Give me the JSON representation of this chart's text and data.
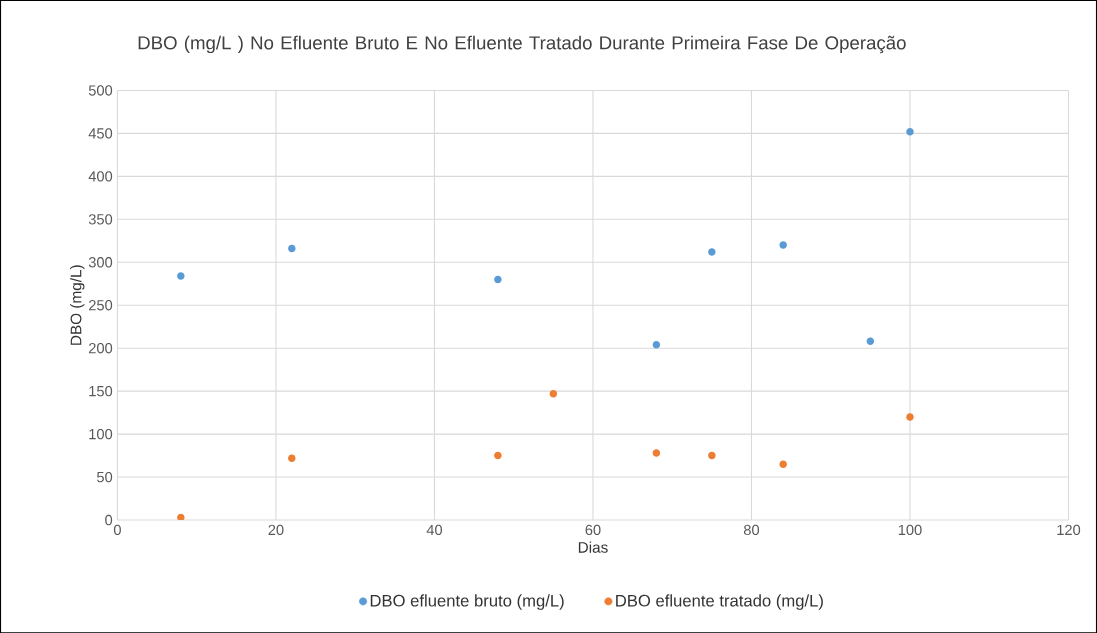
{
  "chart_data": {
    "type": "scatter",
    "title": "DBO (mg/L ) No Efluente Bruto E No Efluente Tratado Durante Primeira Fase De Operação",
    "xlabel": "Dias",
    "ylabel": "DBO (mg/L)",
    "xlim": [
      0,
      120
    ],
    "xticks": [
      0,
      20,
      40,
      60,
      80,
      100,
      120
    ],
    "ylim": [
      0,
      500
    ],
    "yticks": [
      0,
      50,
      100,
      150,
      200,
      250,
      300,
      350,
      400,
      450,
      500
    ],
    "grid": true,
    "legend": "bottom",
    "marker": "circle",
    "series": [
      {
        "name": "DBO efluente bruto (mg/L)",
        "color": "#5b9bd5",
        "x": [
          8,
          22,
          48,
          68,
          75,
          84,
          95,
          100
        ],
        "values": [
          284,
          316,
          280,
          204,
          312,
          320,
          208,
          452
        ]
      },
      {
        "name": "DBO efluente tratado (mg/L)",
        "color": "#ed7d31",
        "x": [
          8,
          22,
          48,
          55,
          68,
          75,
          84,
          100
        ],
        "values": [
          3,
          72,
          75,
          147,
          78,
          75,
          65,
          120
        ]
      }
    ]
  }
}
